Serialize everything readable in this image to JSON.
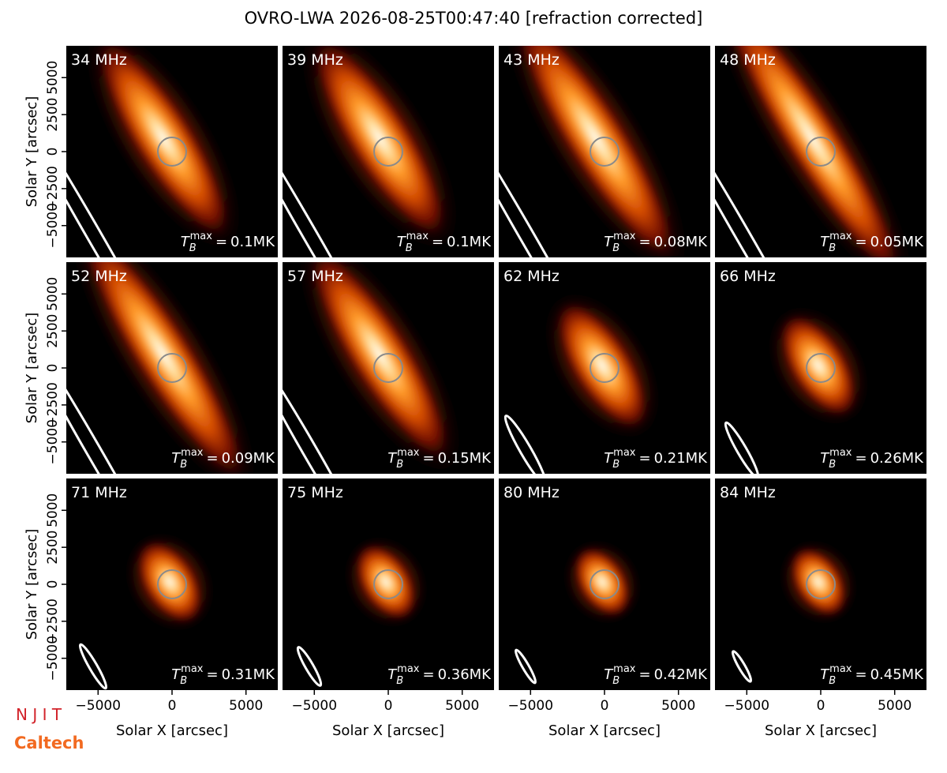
{
  "title": "OVRO-LWA 2026-08-25T00:47:40 [refraction corrected]",
  "annotation_symbol": {
    "base": "T",
    "sub": "B",
    "sup": "max",
    "relation": "="
  },
  "logos": [
    "N J I T",
    "Caltech"
  ],
  "chart_data": [
    {
      "type": "image",
      "title": "34 MHz",
      "annotation": {
        "value": 0.1,
        "label": "0.1MK"
      },
      "xlim": [
        -7150,
        7150
      ],
      "ylim": [
        -7150,
        7150
      ],
      "ylabel": "Solar Y [arcsec]",
      "yticks": [
        {
          "value": -5000,
          "label": "−5000"
        },
        {
          "value": -2500,
          "label": "−2500"
        },
        0,
        2500,
        5000
      ]
    },
    {
      "type": "image",
      "title": "39 MHz",
      "annotation": {
        "value": 0.1,
        "label": "0.1MK"
      },
      "xlim": [
        -7150,
        7150
      ],
      "ylim": [
        -7150,
        7150
      ]
    },
    {
      "type": "image",
      "title": "43 MHz",
      "annotation": {
        "value": 0.08,
        "label": "0.08MK"
      },
      "xlim": [
        -7150,
        7150
      ],
      "ylim": [
        -7150,
        7150
      ]
    },
    {
      "type": "image",
      "title": "48 MHz",
      "annotation": {
        "value": 0.05,
        "label": "0.05MK"
      },
      "xlim": [
        -7150,
        7150
      ],
      "ylim": [
        -7150,
        7150
      ]
    },
    {
      "type": "image",
      "title": "52 MHz",
      "annotation": {
        "value": 0.09,
        "label": "0.09MK"
      },
      "xlim": [
        -7150,
        7150
      ],
      "ylim": [
        -7150,
        7150
      ],
      "ylabel": "Solar Y [arcsec]",
      "yticks": [
        {
          "value": -5000,
          "label": "−5000"
        },
        {
          "value": -2500,
          "label": "−2500"
        },
        0,
        2500,
        5000
      ]
    },
    {
      "type": "image",
      "title": "57 MHz",
      "annotation": {
        "value": 0.15,
        "label": "0.15MK"
      },
      "xlim": [
        -7150,
        7150
      ],
      "ylim": [
        -7150,
        7150
      ]
    },
    {
      "type": "image",
      "title": "62 MHz",
      "annotation": {
        "value": 0.21,
        "label": "0.21MK"
      },
      "xlim": [
        -7150,
        7150
      ],
      "ylim": [
        -7150,
        7150
      ]
    },
    {
      "type": "image",
      "title": "66 MHz",
      "annotation": {
        "value": 0.26,
        "label": "0.26MK"
      },
      "xlim": [
        -7150,
        7150
      ],
      "ylim": [
        -7150,
        7150
      ]
    },
    {
      "type": "image",
      "title": "71 MHz",
      "annotation": {
        "value": 0.31,
        "label": "0.31MK"
      },
      "xlim": [
        -7150,
        7150
      ],
      "ylim": [
        -7150,
        7150
      ],
      "ylabel": "Solar Y [arcsec]",
      "yticks": [
        {
          "value": -5000,
          "label": "−5000"
        },
        {
          "value": -2500,
          "label": "−2500"
        },
        0,
        2500,
        5000
      ],
      "xlabel": "Solar X [arcsec]",
      "xticks": [
        {
          "value": -5000,
          "label": "−5000"
        },
        0,
        5000
      ]
    },
    {
      "type": "image",
      "title": "75 MHz",
      "annotation": {
        "value": 0.36,
        "label": "0.36MK"
      },
      "xlim": [
        -7150,
        7150
      ],
      "ylim": [
        -7150,
        7150
      ],
      "xlabel": "Solar X [arcsec]",
      "xticks": [
        {
          "value": -5000,
          "label": "−5000"
        },
        0,
        5000
      ]
    },
    {
      "type": "image",
      "title": "80 MHz",
      "annotation": {
        "value": 0.42,
        "label": "0.42MK"
      },
      "xlim": [
        -7150,
        7150
      ],
      "ylim": [
        -7150,
        7150
      ],
      "xlabel": "Solar X [arcsec]",
      "xticks": [
        {
          "value": -5000,
          "label": "−5000"
        },
        0,
        5000
      ]
    },
    {
      "type": "image",
      "title": "84 MHz",
      "annotation": {
        "value": 0.45,
        "label": "0.45MK"
      },
      "xlim": [
        -7150,
        7150
      ],
      "ylim": [
        -7150,
        7150
      ],
      "xlabel": "Solar X [arcsec]",
      "xticks": [
        {
          "value": -5000,
          "label": "−5000"
        },
        0,
        5000
      ]
    }
  ]
}
